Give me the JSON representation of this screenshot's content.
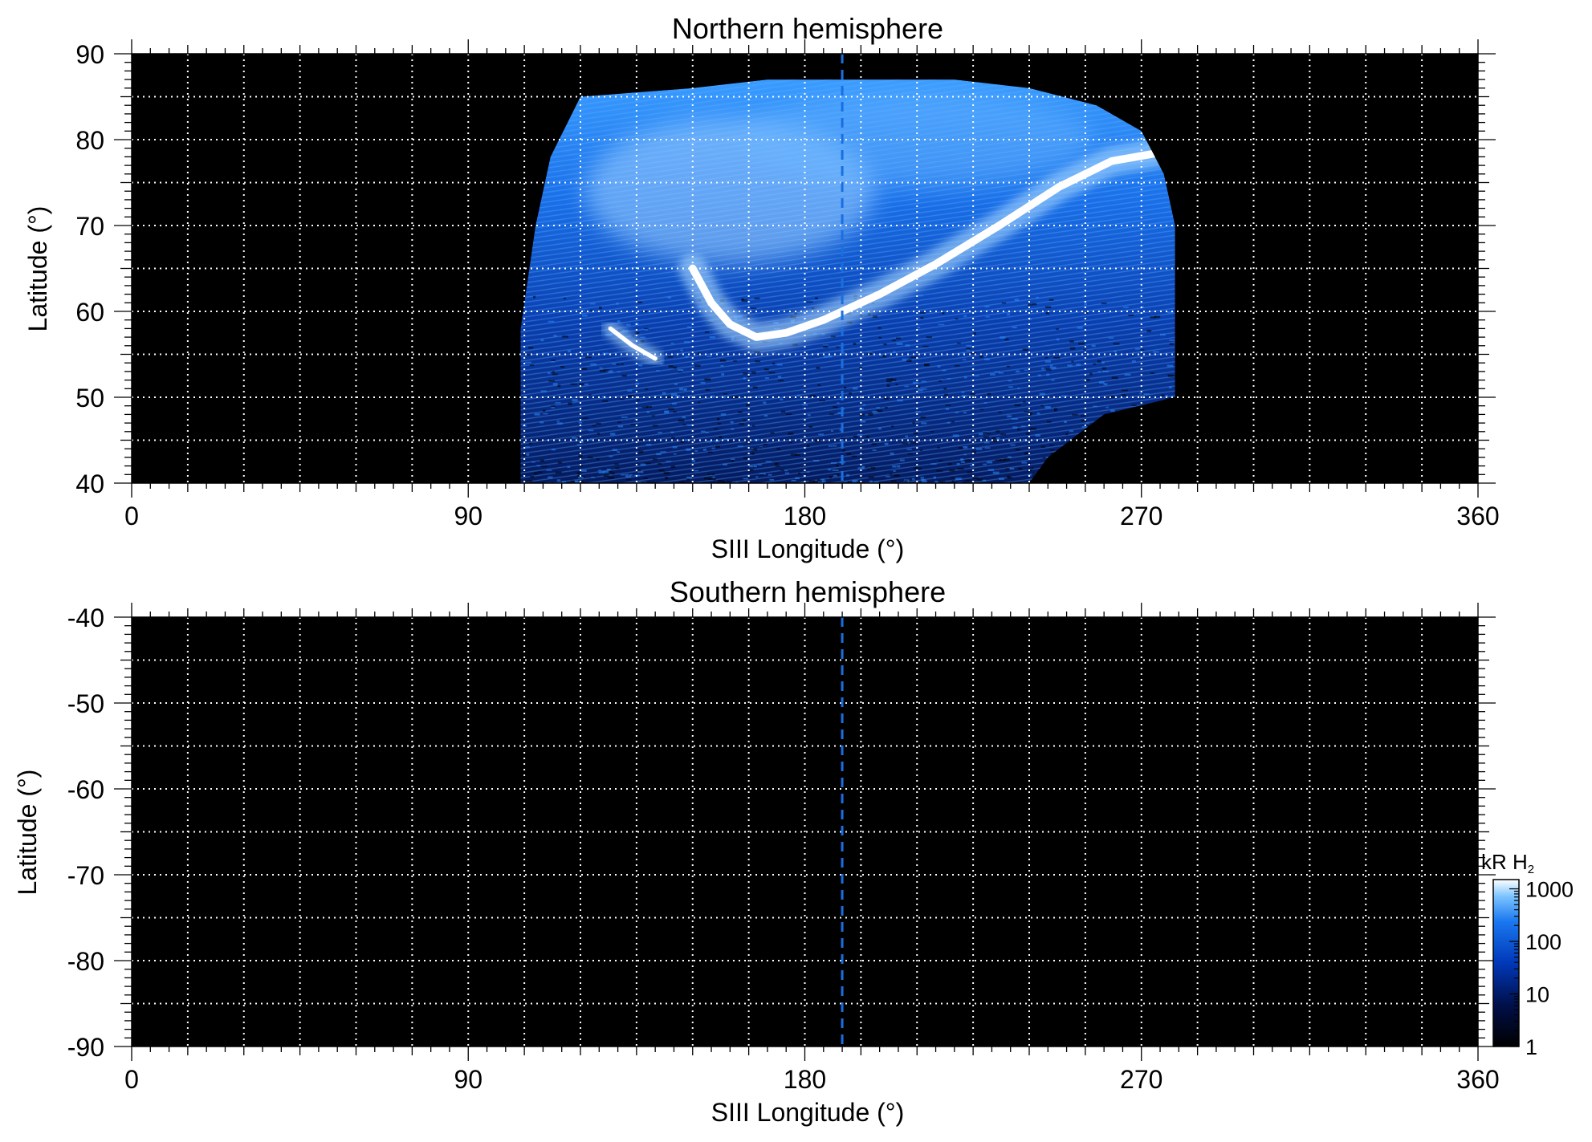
{
  "chart_data": [
    {
      "type": "heatmap",
      "title": "Northern hemisphere",
      "xlabel": "SIII Longitude (°)",
      "ylabel": "Latitude (°)",
      "xlim": [
        0,
        360
      ],
      "ylim": [
        40,
        90
      ],
      "x_ticks": [
        0,
        90,
        180,
        270,
        360
      ],
      "y_ticks": [
        40,
        50,
        60,
        70,
        80,
        90
      ],
      "grid": true,
      "grid_x_step": 15,
      "grid_y_step": 5,
      "reference_longitude": 190,
      "coverage": {
        "lon_range": [
          104,
          279
        ],
        "lat_range": [
          40,
          87
        ],
        "top_edge": [
          [
            120,
            85
          ],
          [
            150,
            86
          ],
          [
            170,
            87
          ],
          [
            190,
            87
          ],
          [
            220,
            87
          ],
          [
            240,
            86
          ],
          [
            258,
            84
          ],
          [
            270,
            81
          ],
          [
            276,
            76
          ]
        ],
        "bottom_right_edge": [
          [
            240,
            40
          ],
          [
            245,
            43
          ],
          [
            260,
            48
          ],
          [
            279,
            50
          ]
        ]
      },
      "features": [
        {
          "name": "main auroral oval",
          "points": [
            [
              150,
              65
            ],
            [
              155,
              61
            ],
            [
              160,
              58.5
            ],
            [
              167,
              57
            ],
            [
              175,
              57.5
            ],
            [
              185,
              59
            ],
            [
              200,
              62
            ],
            [
              215,
              65.5
            ],
            [
              232,
              70
            ],
            [
              248,
              74.5
            ],
            [
              262,
              77.5
            ],
            [
              275,
              78.5
            ]
          ],
          "brightness_kR": 1000
        },
        {
          "name": "equatorward arc",
          "points": [
            [
              128,
              58
            ],
            [
              134,
              56
            ],
            [
              140,
              54.5
            ]
          ],
          "brightness_kR": 600
        }
      ]
    },
    {
      "type": "heatmap",
      "title": "Southern hemisphere",
      "xlabel": "SIII Longitude (°)",
      "ylabel": "Latitude (°)",
      "xlim": [
        0,
        360
      ],
      "ylim": [
        -90,
        -40
      ],
      "x_ticks": [
        0,
        90,
        180,
        270,
        360
      ],
      "y_ticks": [
        -40,
        -50,
        -60,
        -70,
        -80,
        -90
      ],
      "grid": true,
      "grid_x_step": 15,
      "grid_y_step": 5,
      "reference_longitude": 190,
      "coverage": null
    }
  ],
  "colorbar": {
    "label_main": "kR H",
    "label_sub": "2",
    "scale": "log",
    "range": [
      1,
      1500
    ],
    "ticks": [
      1,
      10,
      100,
      1000
    ],
    "colors": {
      "low": "#000000",
      "mid_low": "#001a80",
      "mid": "#0050d8",
      "high": "#38a0ff",
      "top": "#ffffff"
    }
  },
  "colors": {
    "panel_background": "#000000",
    "grid": "#ffffff",
    "reference_line": "#1a6fe0"
  }
}
